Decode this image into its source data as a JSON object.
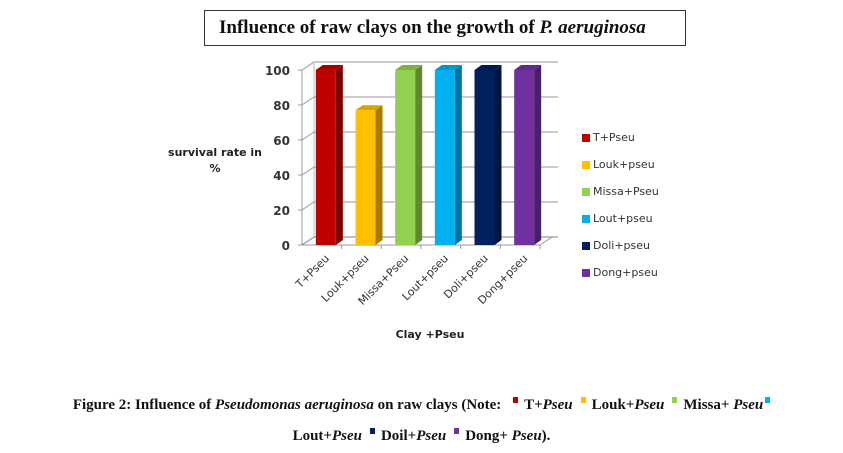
{
  "chart_data": {
    "type": "bar",
    "title_prefix": "Influence of raw clays on the growth of ",
    "title_italic": "P.  aeruginosa",
    "xlabel": "Clay +Pseu",
    "ylabel": "survival rate in %",
    "ylabel_line1": "survival rate in",
    "ylabel_line2": "%",
    "ylim": [
      0,
      100
    ],
    "yticks": [
      0,
      20,
      40,
      60,
      80,
      100
    ],
    "grid": true,
    "legend_position": "right",
    "categories": [
      "T+Pseu",
      "Louk+pseu",
      "Missa+Pseu",
      "Lout+pseu",
      "Doli+pseu",
      "Dong+pseu"
    ],
    "values": [
      100,
      77,
      100,
      100,
      100,
      100
    ],
    "colors": [
      "#c00000",
      "#ffc000",
      "#92d050",
      "#00b0f0",
      "#002060",
      "#7030a0"
    ],
    "legend": [
      "T+Pseu",
      "Louk+pseu",
      "Missa+Pseu",
      "Lout+pseu",
      "Doli+pseu",
      "Dong+pseu"
    ]
  },
  "caption": {
    "prefix": "Figure 2: Influence of ",
    "species": "Pseudomonas aeruginosa",
    "middle": " on raw clays (Note: ",
    "items": [
      {
        "a": "T+",
        "b": "Pseu",
        "color": "#c00000"
      },
      {
        "a": "Louk+",
        "b": "Pseu",
        "color": "#ffc000"
      },
      {
        "a": "Missa+ ",
        "b": "Pseu",
        "color": "#92d050"
      },
      {
        "a": "Lout+",
        "b": "Pseu",
        "color": "#00b0f0"
      },
      {
        "a": "Doil+",
        "b": "Pseu",
        "color": "#002060"
      },
      {
        "a": "Dong+ ",
        "b": "Pseu",
        "color": "#7030a0"
      }
    ],
    "suffix": ")."
  }
}
